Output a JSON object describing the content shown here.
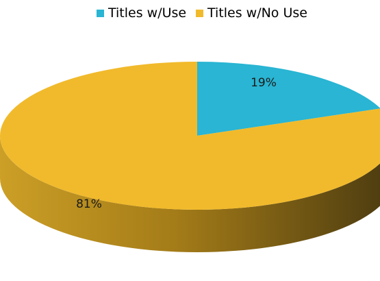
{
  "chart_data": {
    "type": "pie",
    "legend": [
      {
        "label": "Titles w/Use",
        "color": "#29b5d3"
      },
      {
        "label": "Titles w/No Use",
        "color": "#f1ba2c"
      }
    ],
    "slices": [
      {
        "name": "Titles w/Use",
        "value": 19,
        "label": "19%",
        "color": "#29b5d3"
      },
      {
        "name": "Titles w/No Use",
        "value": 81,
        "label": "81%",
        "color": "#f1ba2c"
      }
    ],
    "style": "3d",
    "legend_position": "top"
  }
}
